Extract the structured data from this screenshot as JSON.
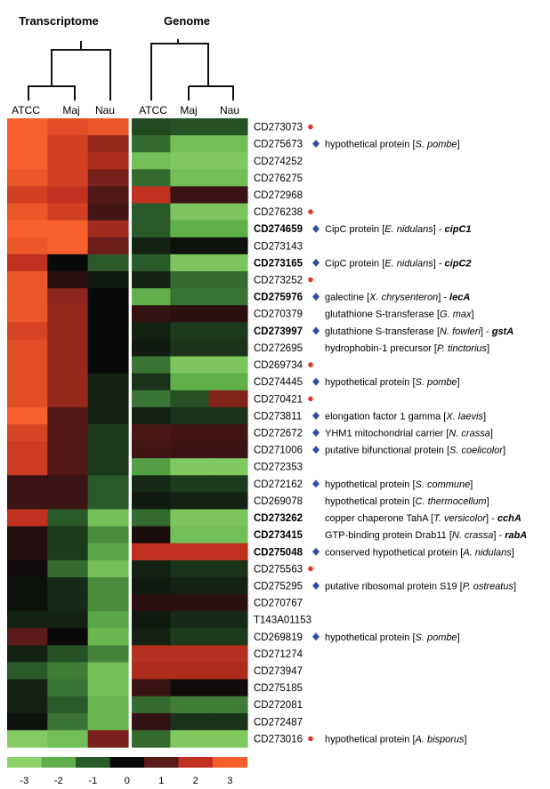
{
  "chart_data": {
    "type": "heatmap",
    "panels": [
      {
        "title": "Transcriptome",
        "columns": [
          "ATCC",
          "Maj",
          "Nau"
        ]
      },
      {
        "title": "Genome",
        "columns": [
          "ATCC",
          "Maj",
          "Nau"
        ]
      }
    ],
    "color_scale": {
      "ticks": [
        "-3",
        "-2",
        "-1",
        "0",
        "1",
        "2",
        "3"
      ],
      "colors": [
        "#8fd26a",
        "#5fb04a",
        "#2a5a2a",
        "#0a0a0a",
        "#5a1a1a",
        "#c0321f",
        "#f7602c"
      ]
    },
    "marker_colors": {
      "diamond": "#2c4fa8",
      "dot": "#e0392a"
    },
    "rows": [
      {
        "id": "CD273073",
        "bold": false,
        "marker": "dot",
        "annotation": [],
        "transcriptome": [
          3,
          2.6,
          2.8
        ],
        "genome": [
          -0.8,
          -0.9,
          -0.9
        ]
      },
      {
        "id": "CD275673",
        "bold": false,
        "marker": "diamond",
        "annotation": [
          {
            "t": "hypothetical protein ["
          },
          {
            "t": "S. pombe",
            "s": "it"
          },
          {
            "t": "]"
          }
        ],
        "transcriptome": [
          3,
          2.3,
          1.6
        ],
        "genome": [
          -1.2,
          -2.4,
          -2.4
        ]
      },
      {
        "id": "CD274252",
        "bold": false,
        "marker": null,
        "annotation": [],
        "transcriptome": [
          3,
          2.3,
          1.8
        ],
        "genome": [
          -2.4,
          -2.7,
          -2.7
        ]
      },
      {
        "id": "CD276275",
        "bold": false,
        "marker": null,
        "annotation": [],
        "transcriptome": [
          2.8,
          2.3,
          1.3
        ],
        "genome": [
          -1.2,
          -2.4,
          -2.4
        ]
      },
      {
        "id": "CD272968",
        "bold": false,
        "marker": null,
        "annotation": [],
        "transcriptome": [
          2.3,
          2.0,
          0.9
        ],
        "genome": [
          2.0,
          0.6,
          0.6
        ]
      },
      {
        "id": "CD276238",
        "bold": false,
        "marker": "dot",
        "annotation": [],
        "transcriptome": [
          2.8,
          2.3,
          0.7
        ],
        "genome": [
          -1.0,
          -2.6,
          -2.6
        ]
      },
      {
        "id": "CD274659",
        "bold": true,
        "marker": "diamond",
        "annotation": [
          {
            "t": "CipC protein ["
          },
          {
            "t": "E. nidulans",
            "s": "it"
          },
          {
            "t": "] - "
          },
          {
            "t": "cipC1",
            "s": "bi"
          }
        ],
        "transcriptome": [
          3,
          3,
          1.7
        ],
        "genome": [
          -1.0,
          -2.0,
          -2.0
        ]
      },
      {
        "id": "CD273143",
        "bold": false,
        "marker": null,
        "annotation": [],
        "transcriptome": [
          2.8,
          3,
          1.2
        ],
        "genome": [
          -0.3,
          -0.1,
          -0.1
        ]
      },
      {
        "id": "CD273165",
        "bold": true,
        "marker": "diamond",
        "annotation": [
          {
            "t": "CipC protein ["
          },
          {
            "t": "E. nidulans",
            "s": "it"
          },
          {
            "t": "] - "
          },
          {
            "t": "cipC2",
            "s": "bi"
          }
        ],
        "transcriptome": [
          2.0,
          0,
          -1.0
        ],
        "genome": [
          -1.0,
          -2.6,
          -2.6
        ]
      },
      {
        "id": "CD273252",
        "bold": false,
        "marker": "dot",
        "annotation": [],
        "transcriptome": [
          2.8,
          0.4,
          -0.2
        ],
        "genome": [
          -0.3,
          -1.2,
          -1.2
        ]
      },
      {
        "id": "CD275976",
        "bold": true,
        "marker": "diamond",
        "annotation": [
          {
            "t": "galectine ["
          },
          {
            "t": "X. chrysenteron",
            "s": "it"
          },
          {
            "t": "] - "
          },
          {
            "t": "lecA",
            "s": "bi"
          }
        ],
        "transcriptome": [
          2.8,
          1.5,
          0
        ],
        "genome": [
          -2.0,
          -1.3,
          -1.3
        ]
      },
      {
        "id": "CD270379",
        "bold": false,
        "marker": null,
        "annotation": [
          {
            "t": "glutathione S-transferase ["
          },
          {
            "t": "G. max",
            "s": "it"
          },
          {
            "t": "]"
          }
        ],
        "transcriptome": [
          2.8,
          1.6,
          0
        ],
        "genome": [
          0.5,
          0.4,
          0.4
        ]
      },
      {
        "id": "CD273997",
        "bold": true,
        "marker": "diamond",
        "annotation": [
          {
            "t": "glutathione S-transferase ["
          },
          {
            "t": "N. fowleri",
            "s": "it"
          },
          {
            "t": "] - "
          },
          {
            "t": "gstA",
            "s": "bi"
          }
        ],
        "transcriptome": [
          2.4,
          1.6,
          0
        ],
        "genome": [
          -0.3,
          -0.6,
          -0.6
        ]
      },
      {
        "id": "CD272695",
        "bold": false,
        "marker": null,
        "annotation": [
          {
            "t": "hydrophobin-1 precursor ["
          },
          {
            "t": "P. tinctorius",
            "s": "it"
          },
          {
            "t": "]"
          }
        ],
        "transcriptome": [
          2.6,
          1.6,
          0
        ],
        "genome": [
          -0.2,
          -0.5,
          -0.5
        ]
      },
      {
        "id": "CD269734",
        "bold": false,
        "marker": "dot",
        "annotation": [],
        "transcriptome": [
          2.6,
          1.6,
          0
        ],
        "genome": [
          -1.3,
          -2.6,
          -2.6
        ]
      },
      {
        "id": "CD274445",
        "bold": false,
        "marker": "diamond",
        "annotation": [
          {
            "t": "hypothetical protein ["
          },
          {
            "t": "S. pombe",
            "s": "it"
          },
          {
            "t": "]"
          }
        ],
        "transcriptome": [
          2.6,
          1.6,
          -0.3
        ],
        "genome": [
          -0.5,
          -2.0,
          -2.0
        ]
      },
      {
        "id": "CD270421",
        "bold": false,
        "marker": "dot",
        "annotation": [],
        "transcriptome": [
          2.6,
          1.6,
          -0.3
        ],
        "genome": [
          -1.3,
          -0.9,
          1.4
        ]
      },
      {
        "id": "CD273811",
        "bold": false,
        "marker": "diamond",
        "annotation": [
          {
            "t": "elongation factor 1 gamma ["
          },
          {
            "t": "X. laevis",
            "s": "it"
          },
          {
            "t": "]"
          }
        ],
        "transcriptome": [
          3,
          0.9,
          -0.3
        ],
        "genome": [
          -0.3,
          -0.5,
          -0.5
        ]
      },
      {
        "id": "CD272672",
        "bold": false,
        "marker": "diamond",
        "annotation": [
          {
            "t": "YHM1 mitochondrial carrier ["
          },
          {
            "t": "N. crassa",
            "s": "it"
          },
          {
            "t": "]"
          }
        ],
        "transcriptome": [
          2.4,
          0.9,
          -0.6
        ],
        "genome": [
          0.8,
          0.7,
          0.7
        ]
      },
      {
        "id": "CD271006",
        "bold": false,
        "marker": "diamond",
        "annotation": [
          {
            "t": "putative bifunctional protein ["
          },
          {
            "t": "S. coelicolor",
            "s": "it"
          },
          {
            "t": "]"
          }
        ],
        "transcriptome": [
          2.2,
          0.9,
          -0.6
        ],
        "genome": [
          0.7,
          0.6,
          0.6
        ]
      },
      {
        "id": "CD272353",
        "bold": false,
        "marker": null,
        "annotation": [],
        "transcriptome": [
          2.2,
          0.9,
          -0.6
        ],
        "genome": [
          -1.8,
          -2.7,
          -2.7
        ]
      },
      {
        "id": "CD272162",
        "bold": false,
        "marker": "diamond",
        "annotation": [
          {
            "t": "hypothetical protein ["
          },
          {
            "t": "S. commune",
            "s": "it"
          },
          {
            "t": "]"
          }
        ],
        "transcriptome": [
          0.6,
          0.6,
          -1.0
        ],
        "genome": [
          -0.4,
          -0.6,
          -0.6
        ]
      },
      {
        "id": "CD269078",
        "bold": false,
        "marker": null,
        "annotation": [
          {
            "t": "hypothetical protein ["
          },
          {
            "t": "C. thermocellum",
            "s": "it"
          },
          {
            "t": "]"
          }
        ],
        "transcriptome": [
          0.6,
          0.6,
          -1.0
        ],
        "genome": [
          -0.2,
          -0.3,
          -0.3
        ]
      },
      {
        "id": "CD273262",
        "bold": true,
        "marker": null,
        "annotation": [
          {
            "t": "copper chaperone TahA ["
          },
          {
            "t": "T. versicolor",
            "s": "it"
          },
          {
            "t": "] - "
          },
          {
            "t": "cchA",
            "s": "bi"
          }
        ],
        "transcriptome": [
          2.0,
          -1.0,
          -2.4
        ],
        "genome": [
          -1.2,
          -2.6,
          -2.6
        ]
      },
      {
        "id": "CD273415",
        "bold": true,
        "marker": null,
        "annotation": [
          {
            "t": "GTP-binding protein Drab11 ["
          },
          {
            "t": "N. crassa",
            "s": "it"
          },
          {
            "t": "] - "
          },
          {
            "t": "rabA",
            "s": "bi"
          }
        ],
        "transcriptome": [
          0.3,
          -0.6,
          -1.6
        ],
        "genome": [
          0.2,
          -2.4,
          -2.4
        ]
      },
      {
        "id": "CD275048",
        "bold": true,
        "marker": "diamond",
        "annotation": [
          {
            "t": "conserved hypothetical protein ["
          },
          {
            "t": "A. nidulans",
            "s": "it"
          },
          {
            "t": "]"
          }
        ],
        "transcriptome": [
          0.3,
          -0.6,
          -1.9
        ],
        "genome": [
          2.0,
          2.0,
          2.0
        ]
      },
      {
        "id": "CD275563",
        "bold": false,
        "marker": "dot",
        "annotation": [],
        "transcriptome": [
          0.1,
          -1.2,
          -2.4
        ],
        "genome": [
          -0.3,
          -0.5,
          -0.5
        ]
      },
      {
        "id": "CD275295",
        "bold": false,
        "marker": "diamond",
        "annotation": [
          {
            "t": "putative ribosomal protein S19 ["
          },
          {
            "t": "P. ostreatus",
            "s": "it"
          },
          {
            "t": "]"
          }
        ],
        "transcriptome": [
          -0.1,
          -0.4,
          -1.6
        ],
        "genome": [
          -0.2,
          -0.3,
          -0.3
        ]
      },
      {
        "id": "CD270767",
        "bold": false,
        "marker": null,
        "annotation": [],
        "transcriptome": [
          -0.1,
          -0.4,
          -1.6
        ],
        "genome": [
          0.4,
          0.4,
          0.4
        ]
      },
      {
        "id": "T143A01153",
        "bold": false,
        "marker": null,
        "annotation": [],
        "transcriptome": [
          -0.3,
          -0.3,
          -1.9
        ],
        "genome": [
          -0.2,
          -0.4,
          -0.4
        ]
      },
      {
        "id": "CD269819",
        "bold": false,
        "marker": "diamond",
        "annotation": [
          {
            "t": "hypothetical protein ["
          },
          {
            "t": "S. pombe",
            "s": "it"
          },
          {
            "t": "]"
          }
        ],
        "transcriptome": [
          1.0,
          0,
          -2.2
        ],
        "genome": [
          -0.3,
          -0.6,
          -0.6
        ]
      },
      {
        "id": "CD271274",
        "bold": false,
        "marker": null,
        "annotation": [],
        "transcriptome": [
          -0.3,
          -0.9,
          -1.5
        ],
        "genome": [
          1.9,
          1.9,
          1.9
        ]
      },
      {
        "id": "CD273947",
        "bold": false,
        "marker": null,
        "annotation": [],
        "transcriptome": [
          -1.0,
          -1.4,
          -2.4
        ],
        "genome": [
          1.8,
          1.8,
          1.8
        ]
      },
      {
        "id": "CD275185",
        "bold": false,
        "marker": null,
        "annotation": [],
        "transcriptome": [
          -0.3,
          -1.3,
          -2.4
        ],
        "genome": [
          0.6,
          0.1,
          0.1
        ]
      },
      {
        "id": "CD272081",
        "bold": false,
        "marker": null,
        "annotation": [],
        "transcriptome": [
          -0.3,
          -1.0,
          -2.2
        ],
        "genome": [
          -1.2,
          -1.4,
          -1.4
        ]
      },
      {
        "id": "CD272487",
        "bold": false,
        "marker": null,
        "annotation": [],
        "transcriptome": [
          -0.1,
          -1.3,
          -2.2
        ],
        "genome": [
          0.5,
          -0.5,
          -0.5
        ]
      },
      {
        "id": "CD273016",
        "bold": false,
        "marker": "dot",
        "annotation": [
          {
            "t": "hypothetical protein ["
          },
          {
            "t": "A. bisporus",
            "s": "it"
          },
          {
            "t": "]"
          }
        ],
        "transcriptome": [
          -2.8,
          -2.4,
          1.3
        ],
        "genome": [
          -1.2,
          -2.7,
          -2.7
        ]
      }
    ]
  }
}
